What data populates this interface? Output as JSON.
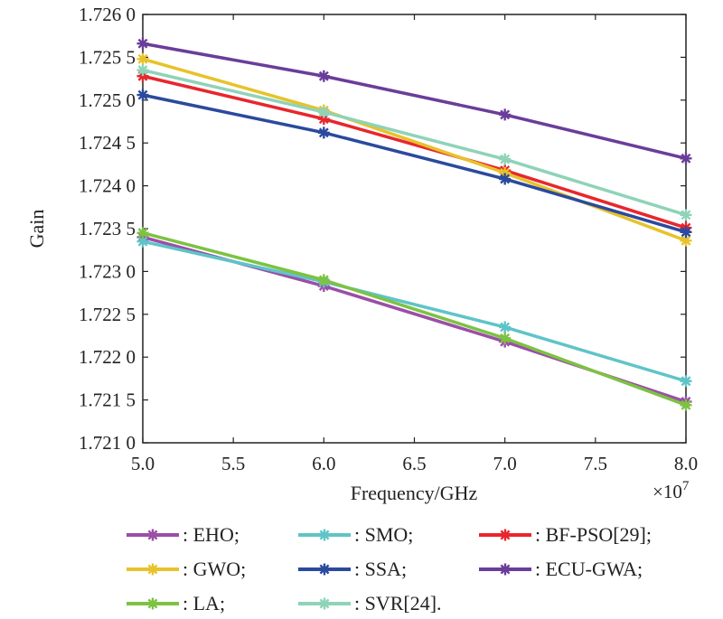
{
  "chart_data": {
    "type": "line",
    "xlabel": "Frequency/GHz",
    "ylabel": "Gain",
    "x_multiplier_label": "×10",
    "x_multiplier_exp": "7",
    "x": [
      5.0,
      6.0,
      7.0,
      8.0
    ],
    "xlim": [
      5.0,
      8.0
    ],
    "ylim": [
      1.721,
      1.726
    ],
    "x_ticks": [
      "5.0",
      "5.5",
      "6.0",
      "6.5",
      "7.0",
      "7.5",
      "8.0"
    ],
    "y_ticks": [
      "1.726 0",
      "1.725 5",
      "1.725 0",
      "1.724 5",
      "1.724 0",
      "1.723 5",
      "1.723 0",
      "1.722 5",
      "1.722 0",
      "1.721 5",
      "1.721 0"
    ],
    "legend_position": "bottom",
    "series": [
      {
        "name": ": EHO;",
        "color": "#9b4ea8",
        "values": [
          1.7234,
          1.72283,
          1.72218,
          1.72148
        ]
      },
      {
        "name": ": SMO;",
        "color": "#5fc4c8",
        "values": [
          1.72335,
          1.72288,
          1.72235,
          1.72172
        ]
      },
      {
        "name": ": BF-PSO[29];",
        "color": "#e8262d",
        "values": [
          1.72528,
          1.72478,
          1.72418,
          1.72351
        ]
      },
      {
        "name": ": GWO;",
        "color": "#e8c22a",
        "values": [
          1.72548,
          1.72488,
          1.72415,
          1.72336
        ]
      },
      {
        "name": ": SSA;",
        "color": "#2a4a9e",
        "values": [
          1.72506,
          1.72462,
          1.72408,
          1.72346
        ]
      },
      {
        "name": ": ECU-GWA;",
        "color": "#6a3d9a",
        "values": [
          1.72566,
          1.72528,
          1.72483,
          1.72432
        ]
      },
      {
        "name": ": LA;",
        "color": "#7dc242",
        "values": [
          1.72345,
          1.7229,
          1.72222,
          1.72144
        ]
      },
      {
        "name": ": SVR[24].",
        "color": "#8fd3b8",
        "values": [
          1.72535,
          1.72486,
          1.72431,
          1.72366
        ]
      }
    ]
  }
}
